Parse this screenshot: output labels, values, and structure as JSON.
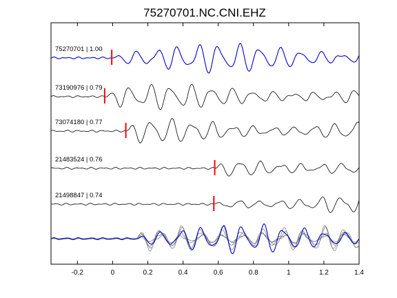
{
  "chart_data": {
    "type": "line",
    "title": "75270701.NC.CNI.EHZ",
    "xlabel": "",
    "ylabel": "",
    "xlim": [
      -0.35,
      1.4
    ],
    "xticks": [
      -0.2,
      0,
      0.2,
      0.4,
      0.6,
      0.8,
      1,
      1.2,
      1.4
    ],
    "xtick_labels": [
      "-0.2",
      "0",
      "0.2",
      "0.4",
      "0.6",
      "0.8",
      "1",
      "1.2",
      "1.4"
    ],
    "grid": false,
    "colors": {
      "primary": "#0000cc",
      "secondary": "#000000",
      "overlay": "#808080",
      "pick": "#ff0000"
    },
    "series": [
      {
        "label": "75270701 | 1.00",
        "pick_time": -0.005,
        "offset": 0.0,
        "amplitude": 1.0,
        "color": "#0000cc"
      },
      {
        "label": "73190976 | 0.79",
        "pick_time": -0.045,
        "offset": -0.04,
        "amplitude": 0.85,
        "color": "#000000"
      },
      {
        "label": "73074180 | 0.77",
        "pick_time": 0.075,
        "offset": 0.08,
        "amplitude": 0.9,
        "color": "#000000"
      },
      {
        "label": "21483524 | 0.76",
        "pick_time": 0.58,
        "offset": 0.0,
        "amplitude": 0.9,
        "color": "#000000"
      },
      {
        "label": "21498847 | 0.74",
        "pick_time": 0.575,
        "offset": 0.0,
        "amplitude": 0.8,
        "color": "#000000"
      }
    ],
    "overlay": {
      "description_series": "all aligned",
      "primary_color": "#0000cc",
      "other_color": "#808080"
    }
  }
}
